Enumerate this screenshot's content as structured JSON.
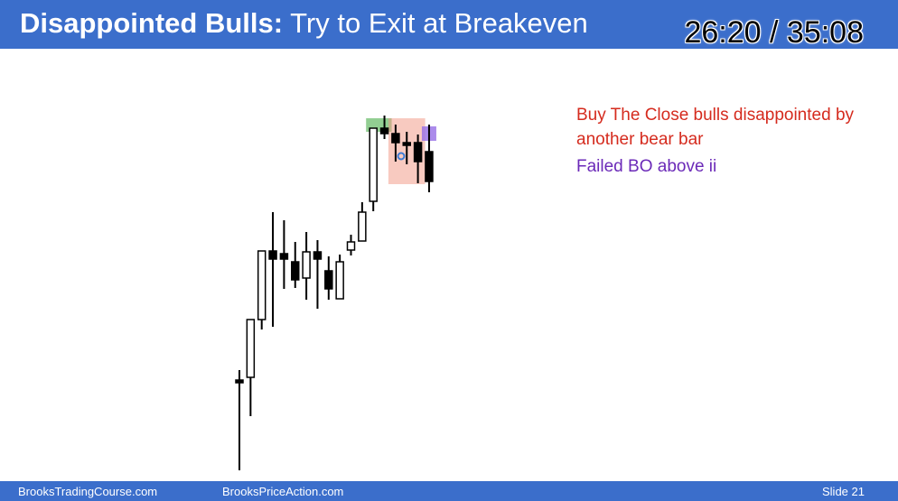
{
  "header": {
    "title_bold": "Disappointed Bulls:",
    "title_rest": " Try to Exit at Breakeven",
    "timer": "26:20 / 35:08"
  },
  "annotations": {
    "buy_the_close": "Buy The Close bulls disappointed by another bear bar",
    "failed_bo": "Failed BO above ii"
  },
  "footer": {
    "site1": "BrooksTradingCourse.com",
    "site2": "BrooksPriceAction.com",
    "slide": "Slide  21"
  },
  "colors": {
    "header_bg": "#3b6ecb",
    "annotation_red": "#d52b1e",
    "annotation_purple": "#6b2ab8",
    "highlight_green": "#7bc47b",
    "highlight_salmon": "#f4b4a8",
    "highlight_purple": "#9b7be0"
  },
  "chart_data": {
    "type": "candlestick",
    "bars": [
      {
        "o": 367,
        "h": 356,
        "l": 467,
        "c": 367,
        "bull": false
      },
      {
        "o": 364,
        "h": 325,
        "l": 407,
        "c": 300,
        "bull": true
      },
      {
        "o": 300,
        "h": 267,
        "l": 311,
        "c": 224,
        "bull": true
      },
      {
        "o": 224,
        "h": 181,
        "l": 308,
        "c": 233,
        "bull": false
      },
      {
        "o": 227,
        "h": 190,
        "l": 266,
        "c": 233,
        "bull": false
      },
      {
        "o": 236,
        "h": 214,
        "l": 265,
        "c": 256,
        "bull": false
      },
      {
        "o": 254,
        "h": 203,
        "l": 278,
        "c": 225,
        "bull": true
      },
      {
        "o": 225,
        "h": 212,
        "l": 288,
        "c": 233,
        "bull": false
      },
      {
        "o": 246,
        "h": 230,
        "l": 278,
        "c": 266,
        "bull": false
      },
      {
        "o": 277,
        "h": 228,
        "l": 277,
        "c": 236,
        "bull": true
      },
      {
        "o": 223,
        "h": 206,
        "l": 229,
        "c": 214,
        "bull": true
      },
      {
        "o": 213,
        "h": 170,
        "l": 213,
        "c": 181,
        "bull": true
      },
      {
        "o": 169,
        "h": 151,
        "l": 180,
        "c": 88,
        "bull": true
      },
      {
        "o": 88,
        "h": 74,
        "l": 100,
        "c": 94,
        "bull": false
      },
      {
        "o": 94,
        "h": 84,
        "l": 125,
        "c": 104,
        "bull": false
      },
      {
        "o": 104,
        "h": 92,
        "l": 128,
        "c": 107,
        "bull": false
      },
      {
        "o": 104,
        "h": 95,
        "l": 149,
        "c": 125,
        "bull": false
      },
      {
        "o": 114,
        "h": 84,
        "l": 159,
        "c": 147,
        "bull": false
      }
    ],
    "highlights": [
      {
        "color": "green",
        "bars": [
          12,
          13
        ]
      },
      {
        "color": "salmon",
        "bars": [
          14,
          16
        ]
      },
      {
        "color": "purple",
        "bars": [
          17,
          17
        ]
      }
    ]
  }
}
